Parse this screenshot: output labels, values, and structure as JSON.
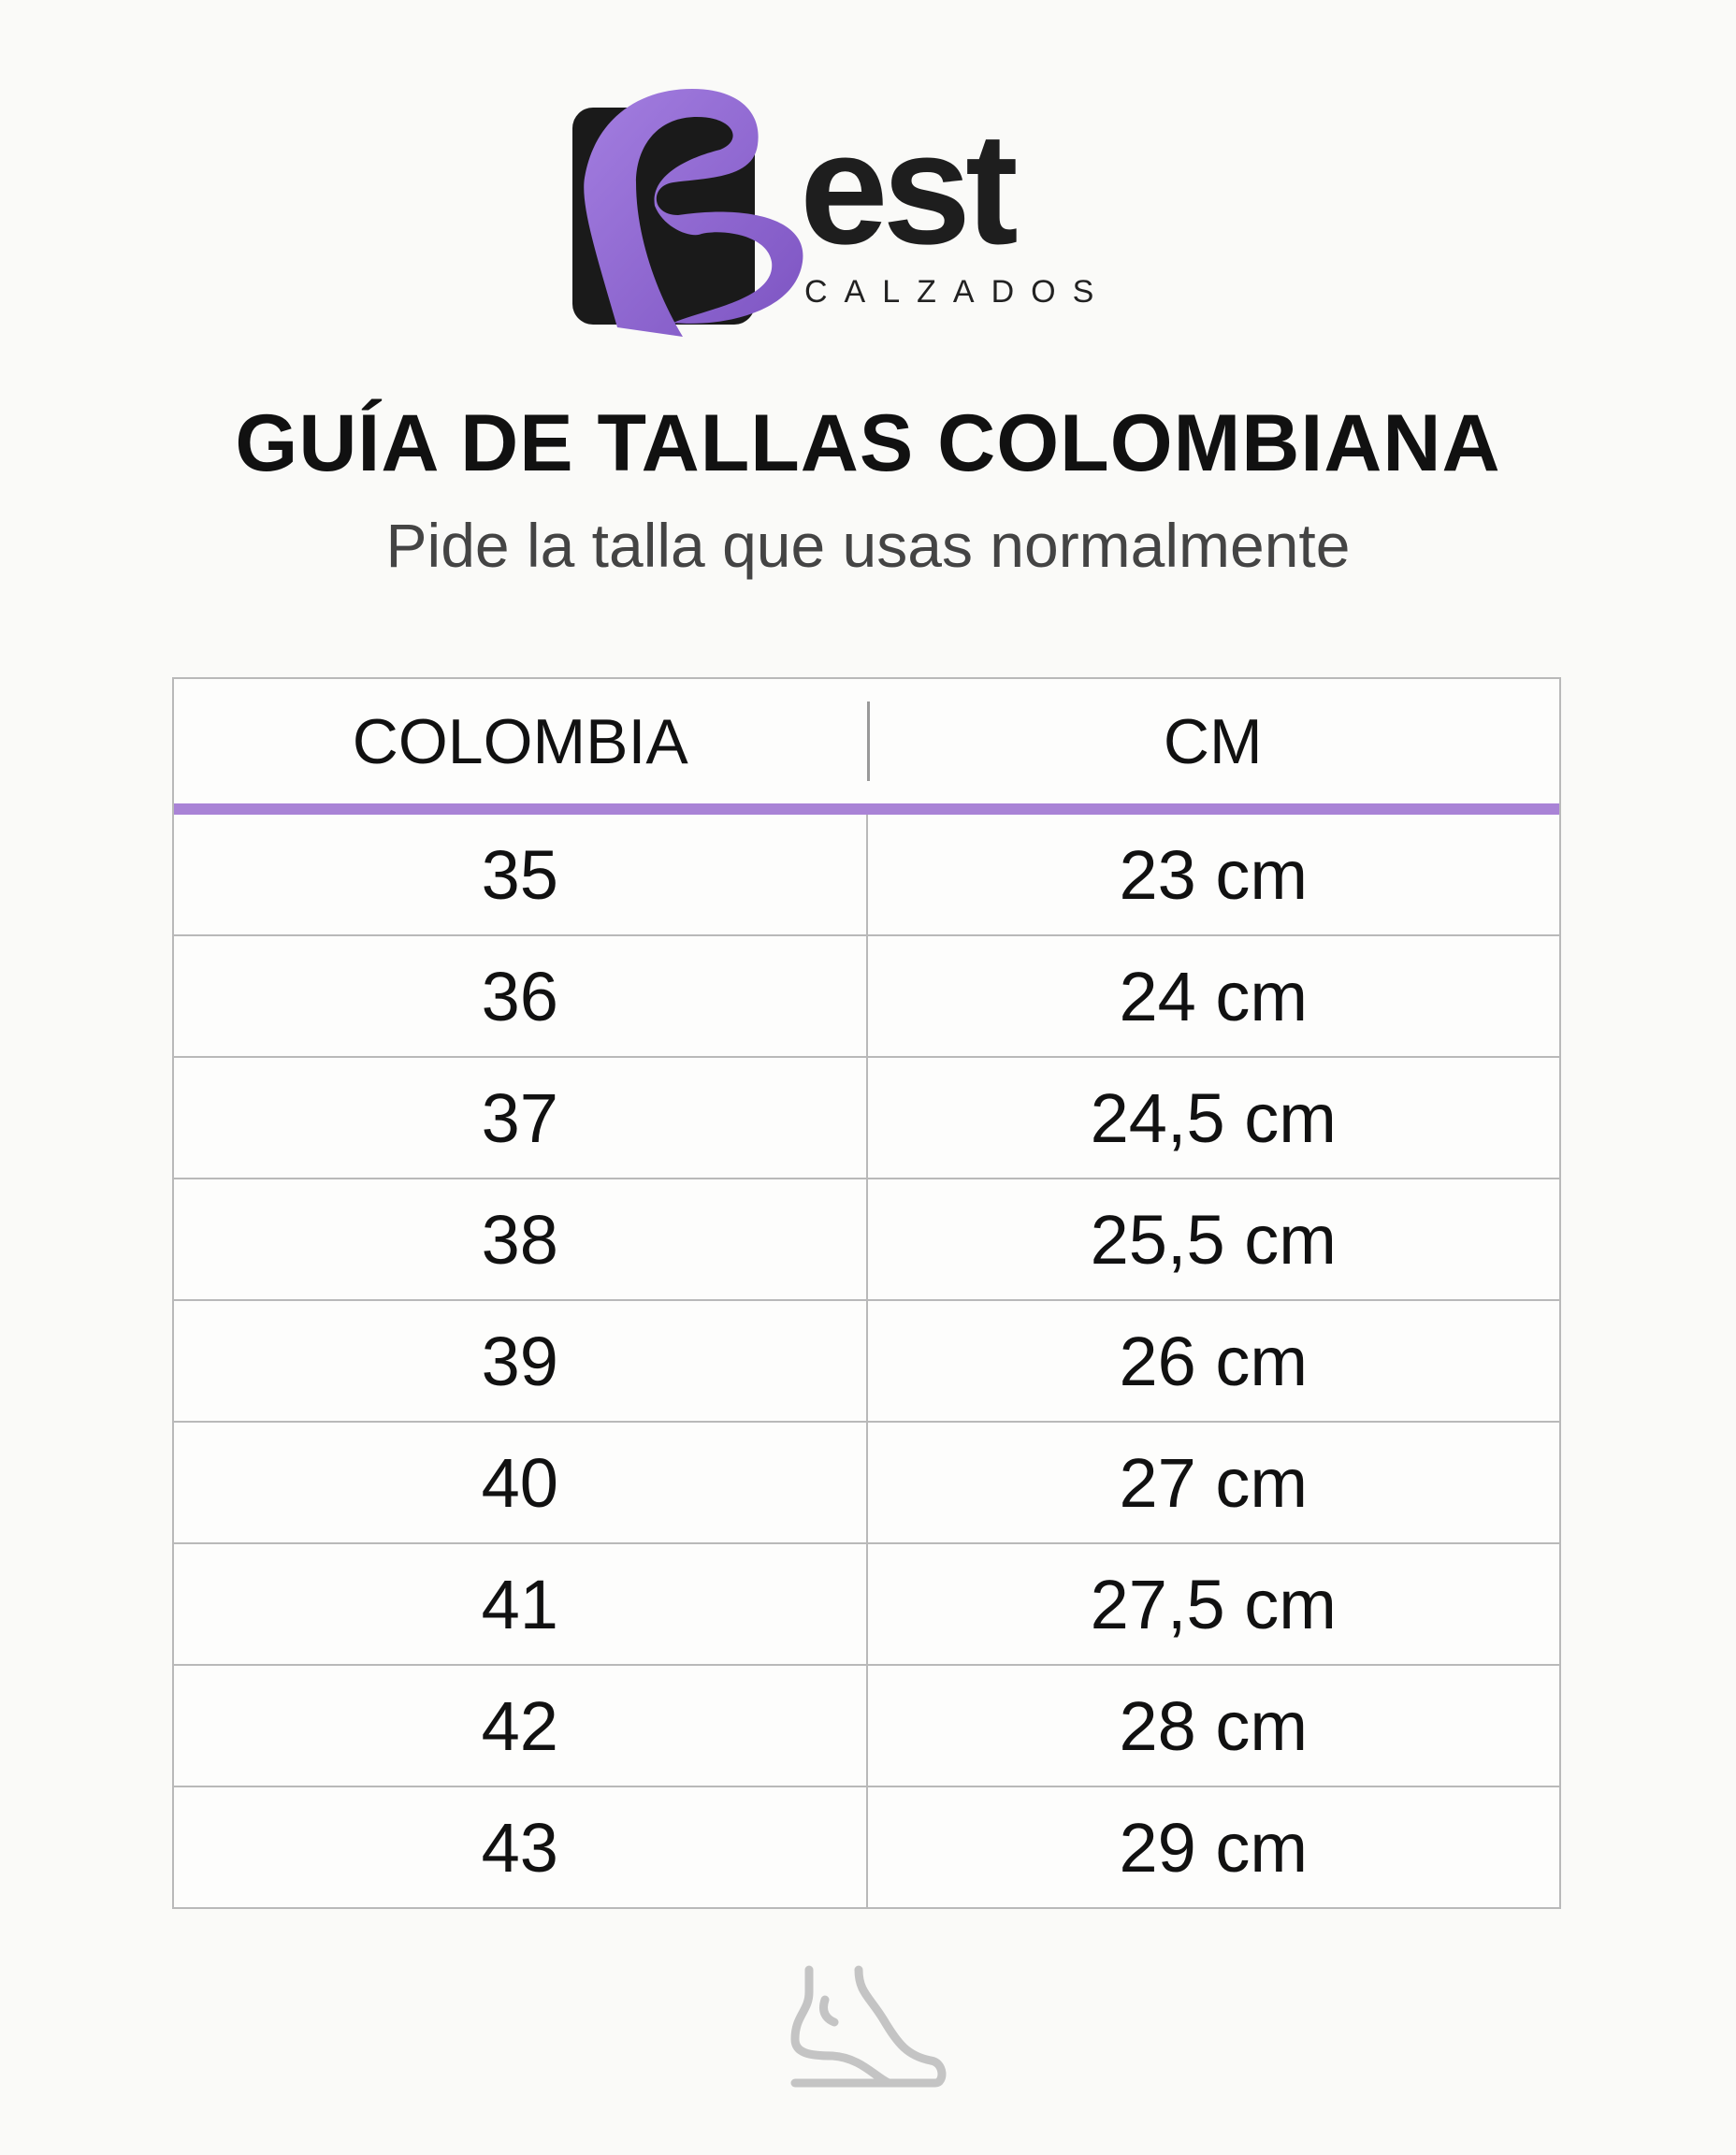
{
  "logo": {
    "brand": "Best",
    "wordmark": "est",
    "tagline": "CALZADOS",
    "colors": {
      "purple": "#8e62cf",
      "black": "#1a1a1a"
    }
  },
  "title": "GUÍA DE TALLAS COLOMBIANA",
  "subtitle": "Pide la talla que usas normalmente",
  "table": {
    "headers": [
      "COLOMBIA",
      "CM"
    ],
    "accent_color": "#a983d6",
    "rows": [
      [
        "35",
        "23 cm"
      ],
      [
        "36",
        "24 cm"
      ],
      [
        "37",
        "24,5 cm"
      ],
      [
        "38",
        "25,5 cm"
      ],
      [
        "39",
        "26 cm"
      ],
      [
        "40",
        "27 cm"
      ],
      [
        "41",
        "27,5 cm"
      ],
      [
        "42",
        "28 cm"
      ],
      [
        "43",
        "29 cm"
      ]
    ]
  },
  "footer": {
    "icon": "foot-icon"
  }
}
